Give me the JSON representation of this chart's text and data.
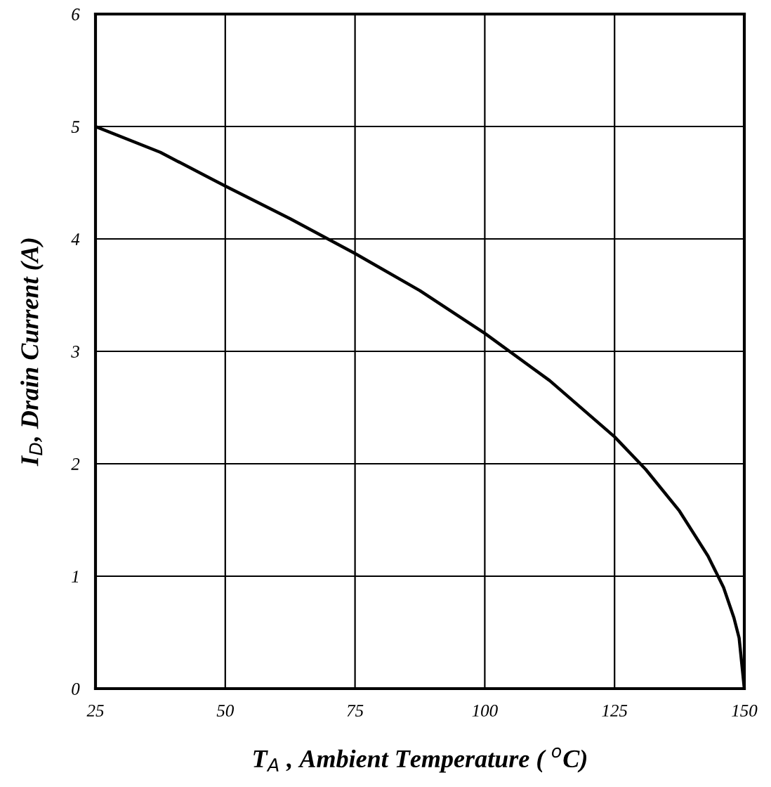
{
  "chart_data": {
    "type": "line",
    "xlabel": "T$_{A}$ , Ambient Temperature ( $^{o}$C)",
    "ylabel": "I$_{D}$, Drain Current (A)",
    "x": [
      25,
      37.5,
      50,
      62.5,
      75,
      87.5,
      100,
      112.5,
      125,
      131,
      137.5,
      143,
      146,
      148,
      149,
      150
    ],
    "series": [
      {
        "color": "#000000",
        "values": [
          5.0,
          4.77,
          4.47,
          4.18,
          3.87,
          3.54,
          3.16,
          2.74,
          2.24,
          1.95,
          1.58,
          1.18,
          0.9,
          0.63,
          0.45,
          0
        ]
      }
    ],
    "xlim": [
      25,
      150
    ],
    "xticks": [
      25,
      50,
      75,
      100,
      125,
      150
    ],
    "ylim": [
      0,
      6
    ],
    "yticks": [
      0,
      1,
      2,
      3,
      4,
      5,
      6
    ],
    "grid": true,
    "marker": "none",
    "line_style": "solid"
  }
}
